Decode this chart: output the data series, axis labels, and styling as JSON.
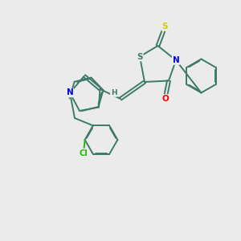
{
  "background_color": "#ebebeb",
  "bond_color": "#3d7a6a",
  "atom_colors": {
    "N": "#0000ee",
    "O": "#ff0000",
    "S_thio": "#cccc00",
    "S_ring": "#3d7a6a",
    "Cl": "#22bb00",
    "H": "#3d7a6a",
    "C": "#3d7a6a"
  }
}
